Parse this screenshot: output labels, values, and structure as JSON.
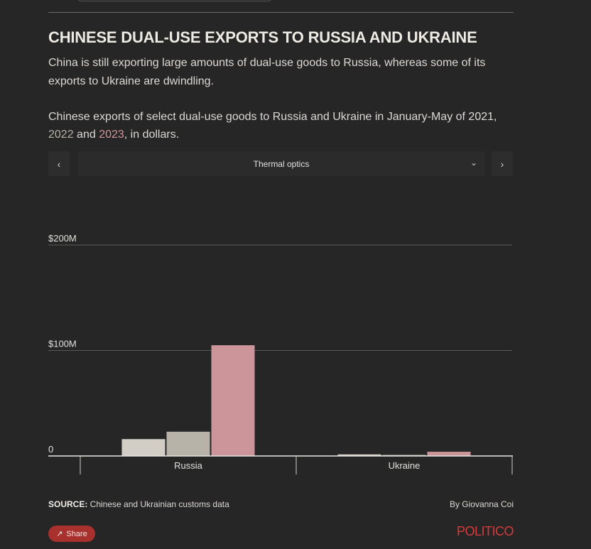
{
  "header": {
    "title": "CHINESE DUAL-USE EXPORTS TO RUSSIA AND UKRAINE",
    "dek": "China is still exporting large amounts of dual-use goods to Russia, whereas some of its exports to Ukraine are dwindling.",
    "subtitle_pre": "Chinese exports of select dual-use goods to Russia and Ukraine in January-May of ",
    "year_2021": "2021",
    "sep_1": ", ",
    "year_2022": "2022",
    "sep_2": " and ",
    "year_2023": "2023",
    "subtitle_post": ", in dollars."
  },
  "controls": {
    "prev_glyph": "‹",
    "next_glyph": "›",
    "dropdown_value": "Thermal optics",
    "chevron_glyph": "⌄"
  },
  "chart_data": {
    "type": "bar",
    "categories": [
      "Russia",
      "Ukraine"
    ],
    "series": [
      {
        "name": "2021",
        "color": "#d2cdc5",
        "values": [
          16,
          1.5
        ]
      },
      {
        "name": "2022",
        "color": "#b8b3a9",
        "values": [
          23,
          1
        ]
      },
      {
        "name": "2023",
        "color": "#cc959a",
        "values": [
          105,
          4
        ]
      }
    ],
    "ylim": [
      0,
      200
    ],
    "yticks": [
      {
        "value": 0,
        "label": "0"
      },
      {
        "value": 100,
        "label": "$100M"
      },
      {
        "value": 200,
        "label": "$200M"
      }
    ],
    "grid": true,
    "title": "",
    "xlabel": "",
    "ylabel": ""
  },
  "footer": {
    "source_label": "SOURCE:",
    "source_text": " Chinese and Ukrainian customs data",
    "byline": "By Giovanna Coi",
    "share_label": "Share",
    "share_icon": "↗",
    "logo": "POLITICO"
  }
}
